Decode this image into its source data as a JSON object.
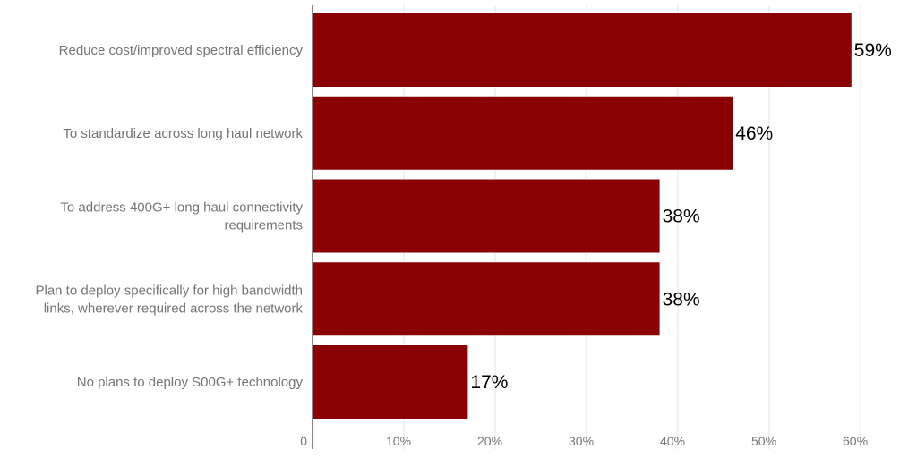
{
  "chart_data": {
    "type": "bar",
    "orientation": "horizontal",
    "title": "",
    "xlabel": "",
    "ylabel": "",
    "categories": [
      [
        "Reduce cost/improved spectral efficiency"
      ],
      [
        "To standardize across long haul network"
      ],
      [
        "To address 400G+ long haul connectivity",
        "requirements"
      ],
      [
        "Plan to deploy specifically for high bandwidth",
        "links, wherever required across the network"
      ],
      [
        "No plans to deploy S00G+ technology"
      ]
    ],
    "values": [
      59,
      46,
      38,
      38,
      17
    ],
    "data_labels": [
      "59%",
      "46%",
      "38%",
      "38%",
      "17%"
    ],
    "x_ticks": [
      0,
      10,
      20,
      30,
      40,
      50,
      60
    ],
    "x_tick_labels": [
      "0",
      "10%",
      "20%",
      "30%",
      "40%",
      "50%",
      "60%"
    ],
    "xlim": [
      0,
      60
    ],
    "grid": true,
    "legend": "none",
    "colors": {
      "bar": "#8b0000"
    }
  }
}
